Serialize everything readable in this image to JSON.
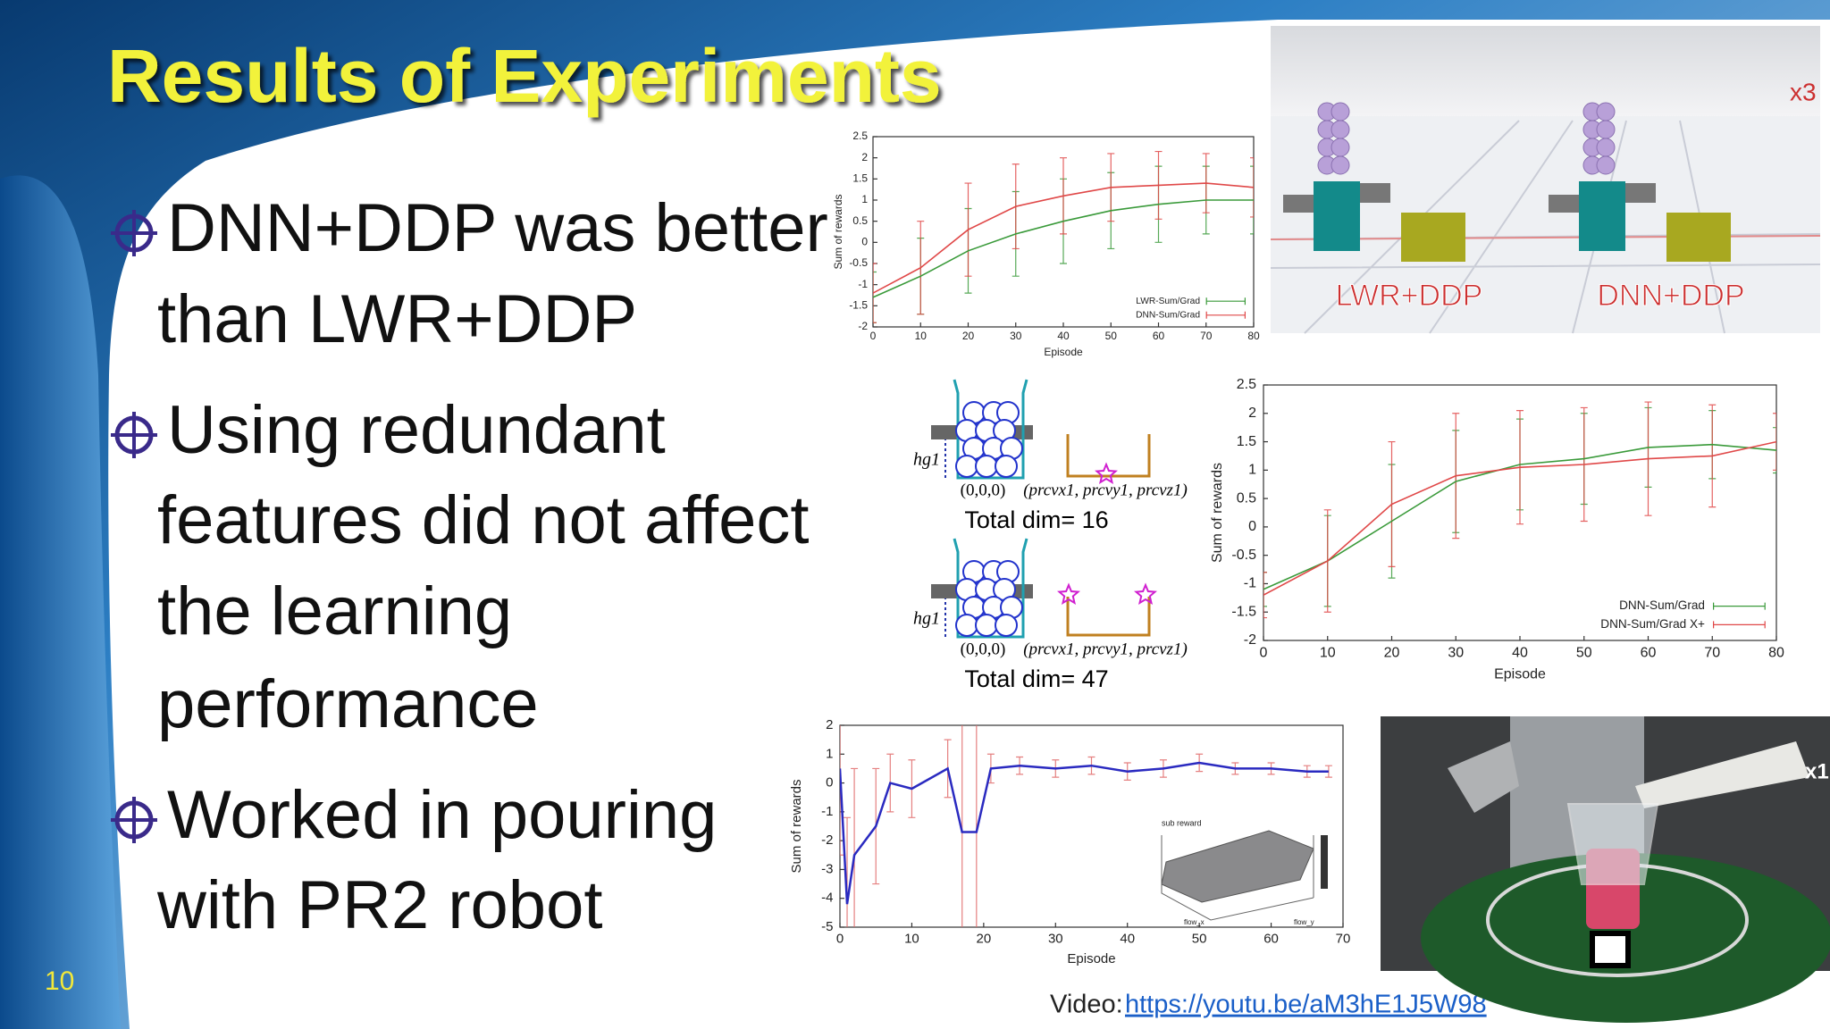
{
  "slide": {
    "title": "Results of Experiments",
    "page_number": "10",
    "bullets": [
      {
        "lines": [
          "DNN+DDP was better",
          "than LWR+DDP"
        ]
      },
      {
        "lines": [
          "Using redundant",
          "features did not affect",
          "the learning",
          "performance"
        ]
      },
      {
        "lines": [
          "Worked in pouring",
          "with PR2 robot"
        ]
      }
    ],
    "video": {
      "label": "Video:",
      "url": "https://youtu.be/aM3hE1J5W98"
    }
  },
  "videos": [
    {
      "speed": "x3",
      "labels": [
        "LWR+DDP",
        "DNN+DDP"
      ]
    },
    {
      "speed": "x1"
    }
  ],
  "diagram": {
    "panels": [
      {
        "height_label": "hg1",
        "origin": "(0,0,0)",
        "target": "(prcvx1, prcvy1, prcvz1)",
        "total": "Total dim= 16"
      },
      {
        "height_label": "hg1",
        "origin": "(0,0,0)",
        "target": "(prcvx1, prcvy1, prcvz1)",
        "total": "Total dim= 47"
      }
    ]
  },
  "charts": [
    {
      "type": "line",
      "x_label": "Episode",
      "y_label": "Sum of rewards",
      "x": [
        0,
        10,
        20,
        30,
        40,
        50,
        60,
        70,
        80
      ],
      "xlim": [
        0,
        80
      ],
      "xticks": [
        0,
        10,
        20,
        30,
        40,
        50,
        60,
        70,
        80
      ],
      "ylim": [
        -2,
        2.5
      ],
      "yticks": [
        -2,
        -1.5,
        -1,
        -0.5,
        0,
        0.5,
        1,
        1.5,
        2,
        2.5
      ],
      "legend": "lower right",
      "series": [
        {
          "name": "LWR-Sum/Grad",
          "color": "#3a9a3a",
          "values": [
            -1.3,
            -0.8,
            -0.2,
            0.2,
            0.5,
            0.75,
            0.9,
            1.0,
            1.0
          ],
          "errors": [
            0.6,
            0.9,
            1.0,
            1.0,
            1.0,
            0.9,
            0.9,
            0.8,
            0.8
          ]
        },
        {
          "name": "DNN-Sum/Grad",
          "color": "#e04848",
          "values": [
            -1.2,
            -0.6,
            0.3,
            0.85,
            1.1,
            1.3,
            1.35,
            1.4,
            1.3
          ],
          "errors": [
            0.7,
            1.1,
            1.1,
            1.0,
            0.9,
            0.8,
            0.8,
            0.7,
            0.7
          ]
        }
      ]
    },
    {
      "type": "line",
      "x_label": "Episode",
      "y_label": "Sum of rewards",
      "x": [
        0,
        10,
        20,
        30,
        40,
        50,
        60,
        70,
        80
      ],
      "xlim": [
        0,
        80
      ],
      "xticks": [
        0,
        10,
        20,
        30,
        40,
        50,
        60,
        70,
        80
      ],
      "ylim": [
        -2,
        2.5
      ],
      "yticks": [
        -2,
        -1.5,
        -1,
        -0.5,
        0,
        0.5,
        1,
        1.5,
        2,
        2.5
      ],
      "legend": "lower right",
      "series": [
        {
          "name": "DNN-Sum/Grad",
          "color": "#3a9a3a",
          "values": [
            -1.1,
            -0.6,
            0.1,
            0.8,
            1.1,
            1.2,
            1.4,
            1.45,
            1.35
          ],
          "errors": [
            0.3,
            0.8,
            1.0,
            0.9,
            0.8,
            0.8,
            0.7,
            0.6,
            0.4
          ]
        },
        {
          "name": "DNN-Sum/Grad X+",
          "color": "#e04848",
          "values": [
            -1.2,
            -0.6,
            0.4,
            0.9,
            1.05,
            1.1,
            1.2,
            1.25,
            1.5
          ],
          "errors": [
            0.4,
            0.9,
            1.1,
            1.1,
            1.0,
            1.0,
            1.0,
            0.9,
            0.5
          ]
        }
      ]
    },
    {
      "type": "line",
      "x_label": "Episode",
      "y_label": "Sum of rewards",
      "x": [
        0,
        1,
        2,
        5,
        7,
        10,
        15,
        17,
        19,
        21,
        25,
        30,
        35,
        40,
        45,
        50,
        55,
        60,
        65,
        68
      ],
      "xlim": [
        0,
        70
      ],
      "xticks": [
        0,
        10,
        20,
        30,
        40,
        50,
        60,
        70
      ],
      "ylim": [
        -5,
        2
      ],
      "yticks": [
        -5,
        -4,
        -3,
        -2,
        -1,
        0,
        1,
        2
      ],
      "series": [
        {
          "color": "#2a2ac0",
          "error_color": "#e06a6a",
          "values": [
            0.5,
            -4.2,
            -2.5,
            -1.5,
            0,
            -0.2,
            0.5,
            -1.7,
            -1.7,
            0.5,
            0.6,
            0.5,
            0.6,
            0.4,
            0.5,
            0.7,
            0.5,
            0.5,
            0.4,
            0.4
          ],
          "errors": [
            3,
            3,
            3,
            2,
            1,
            1,
            1,
            4,
            4,
            0.5,
            0.3,
            0.3,
            0.3,
            0.3,
            0.3,
            0.3,
            0.2,
            0.2,
            0.2,
            0.2
          ]
        }
      ],
      "inset": {
        "title": "sub reward",
        "x_label": "flow_x",
        "y_label": "flow_y"
      }
    }
  ]
}
